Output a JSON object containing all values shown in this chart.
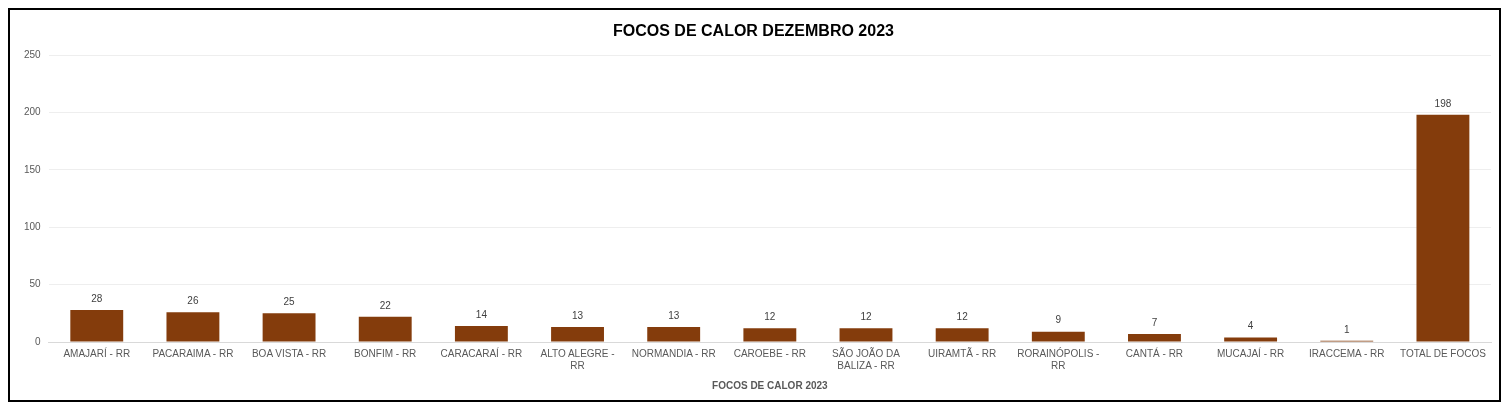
{
  "chart_data": {
    "type": "bar",
    "title": "FOCOS DE CALOR DEZEMBRO 2023",
    "xlabel": "FOCOS DE CALOR 2023",
    "categories": [
      "AMAJARÍ - RR",
      "PACARAIMA - RR",
      "BOA VISTA - RR",
      "BONFIM - RR",
      "CARACARAÍ - RR",
      "ALTO ALEGRE - RR",
      "NORMANDIA - RR",
      "CAROEBE - RR",
      "SÃO JOÃO DA BALIZA - RR",
      "UIRAMTÃ - RR",
      "RORAINÓPOLIS - RR",
      "CANTÁ - RR",
      "MUCAJAÍ - RR",
      "IRACCEMA - RR",
      "TOTAL DE FOCOS"
    ],
    "values": [
      28,
      26,
      25,
      22,
      14,
      13,
      13,
      12,
      12,
      12,
      9,
      7,
      4,
      1,
      198
    ],
    "color": "#843c0c",
    "ylim": [
      0,
      250
    ],
    "yticks": [
      0,
      50,
      100,
      150,
      200,
      250
    ],
    "grid": "y",
    "data_labels": true,
    "legend": false
  }
}
